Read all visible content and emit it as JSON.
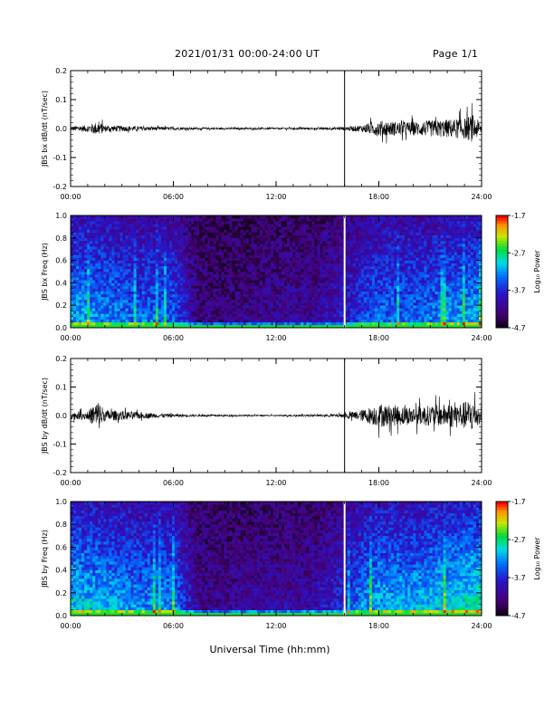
{
  "header": {
    "title": "2021/01/31  00:00-24:00 UT",
    "page": "Page 1/1"
  },
  "x_axis": {
    "label": "Universal Time (hh:mm)",
    "ticks": [
      "00:00",
      "06:00",
      "12:00",
      "18:00",
      "24:00"
    ],
    "range_hours": [
      0,
      24
    ]
  },
  "colorbar": {
    "label": "Log₁₀ Power",
    "ticks": [
      "-1.7",
      "-2.7",
      "-3.7",
      "-4.7"
    ],
    "range": [
      -4.7,
      -1.7
    ],
    "colormap": "rainbow (black-purple-blue-cyan-green-yellow-red)"
  },
  "chart_data": [
    {
      "type": "line",
      "ylabel": "JBS bx dB/dt (nT/sec)",
      "ylim": [
        -0.2,
        0.2
      ],
      "yticks": [
        "0.2",
        "0.1",
        "0.0",
        "-0.1",
        "-0.2"
      ],
      "marker_time_hours": 16.0,
      "envelope": {
        "x_hours": [
          0,
          1,
          1.6,
          2,
          3,
          4,
          5,
          6,
          7,
          8,
          10,
          12,
          14,
          15.5,
          16,
          17,
          18,
          19,
          20,
          21,
          22,
          23,
          23.5,
          24
        ],
        "amplitude": [
          0.01,
          0.015,
          0.03,
          0.015,
          0.012,
          0.01,
          0.008,
          0.006,
          0.005,
          0.004,
          0.004,
          0.004,
          0.005,
          0.006,
          0.008,
          0.015,
          0.035,
          0.03,
          0.03,
          0.035,
          0.04,
          0.045,
          0.06,
          0.02
        ]
      }
    },
    {
      "type": "heatmap",
      "ylabel": "JBS bx Freq (Hz)",
      "ylim": [
        0.0,
        1.0
      ],
      "yticks": [
        "1.0",
        "0.8",
        "0.6",
        "0.4",
        "0.2",
        "0.0"
      ],
      "marker_time_hours": 16.0,
      "activity_profile": {
        "x_hours": [
          0,
          2,
          4,
          6,
          7.5,
          10,
          12,
          14,
          16,
          17,
          18,
          20,
          22,
          24
        ],
        "level": [
          0.55,
          0.5,
          0.45,
          0.45,
          0.15,
          0.15,
          0.2,
          0.2,
          0.3,
          0.4,
          0.45,
          0.45,
          0.5,
          0.55
        ]
      }
    },
    {
      "type": "line",
      "ylabel": "JBS by dB/dt (nT/sec)",
      "ylim": [
        -0.2,
        0.2
      ],
      "yticks": [
        "0.2",
        "0.1",
        "0.0",
        "-0.1",
        "-0.2"
      ],
      "marker_time_hours": 16.0,
      "envelope": {
        "x_hours": [
          0,
          1,
          1.6,
          2,
          3,
          4,
          5,
          6,
          7,
          8,
          10,
          12,
          14,
          15.5,
          16,
          17,
          18,
          19,
          20,
          21,
          22,
          23,
          23.5,
          24
        ],
        "amplitude": [
          0.015,
          0.02,
          0.07,
          0.025,
          0.02,
          0.015,
          0.01,
          0.007,
          0.005,
          0.004,
          0.003,
          0.003,
          0.004,
          0.006,
          0.01,
          0.025,
          0.05,
          0.045,
          0.04,
          0.045,
          0.05,
          0.06,
          0.075,
          0.03
        ]
      }
    },
    {
      "type": "heatmap",
      "ylabel": "JBS by Freq (Hz)",
      "ylim": [
        0.0,
        1.0
      ],
      "yticks": [
        "1.0",
        "0.8",
        "0.6",
        "0.4",
        "0.2",
        "0.0"
      ],
      "marker_time_hours": 16.0,
      "activity_profile": {
        "x_hours": [
          0,
          2,
          4,
          6,
          7.5,
          10,
          12,
          14,
          16,
          17,
          18,
          20,
          22,
          24
        ],
        "level": [
          0.6,
          0.55,
          0.5,
          0.5,
          0.18,
          0.2,
          0.22,
          0.22,
          0.35,
          0.5,
          0.55,
          0.55,
          0.6,
          0.65
        ]
      }
    }
  ]
}
